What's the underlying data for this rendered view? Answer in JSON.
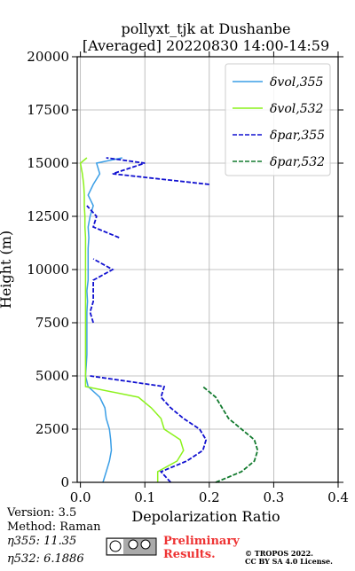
{
  "chart_data": {
    "type": "line",
    "title": [
      "pollyxt_tjk at Dushanbe",
      "[Averaged] 20220830 14:00-14:59"
    ],
    "x_label": "Depolarization Ratio",
    "y_label": "Height (m)",
    "x": [
      0,
      500,
      1000,
      1500,
      2000,
      2500,
      3000,
      3500,
      4000,
      4500,
      5000,
      5500,
      6000,
      6500,
      7000,
      7500,
      8000,
      8500,
      9000,
      9500,
      10000,
      10500,
      11000,
      11500,
      12000,
      12500,
      13000,
      13500,
      14000,
      14500,
      15000,
      15250
    ],
    "series": [
      {
        "name": "δvol,355",
        "color": "#3a9ee6",
        "dash": false,
        "values": [
          0.035,
          0.04,
          0.045,
          0.048,
          0.047,
          0.045,
          0.04,
          0.038,
          0.03,
          0.012,
          0.008,
          0.009,
          0.01,
          0.01,
          0.01,
          0.01,
          0.01,
          0.011,
          0.01,
          0.012,
          0.012,
          0.012,
          0.012,
          0.013,
          0.012,
          0.015,
          0.02,
          0.012,
          0.02,
          0.03,
          0.025,
          0.065
        ]
      },
      {
        "name": "δvol,532",
        "color": "#8cf21c",
        "dash": false,
        "values": [
          0.12,
          0.12,
          0.15,
          0.16,
          0.155,
          0.13,
          0.125,
          0.11,
          0.09,
          0.008,
          0.008,
          0.008,
          0.008,
          0.008,
          0.008,
          0.008,
          0.008,
          0.008,
          0.008,
          0.008,
          0.008,
          0.008,
          0.008,
          0.008,
          0.007,
          0.007,
          0.006,
          0.006,
          0.005,
          0.003,
          0.0,
          0.01
        ]
      },
      {
        "name": "δpar,355",
        "color": "#1010d0",
        "dash": true,
        "values": [
          0.14,
          0.125,
          0.165,
          0.19,
          0.195,
          0.185,
          0.16,
          0.14,
          0.125,
          0.13,
          0.015,
          null,
          null,
          null,
          null,
          0.02,
          0.015,
          0.02,
          0.02,
          0.02,
          0.05,
          0.02,
          null,
          0.06,
          0.02,
          0.025,
          0.01,
          null,
          0.2,
          0.05,
          0.1,
          0.04
        ]
      },
      {
        "name": "δpar,532",
        "color": "#127a2e",
        "dash": true,
        "values": [
          0.21,
          0.25,
          0.27,
          0.275,
          0.27,
          0.25,
          0.23,
          0.22,
          0.21,
          0.19,
          null,
          null,
          null,
          null,
          null,
          null,
          null,
          null,
          null,
          null,
          null,
          null,
          null,
          null,
          null,
          null,
          null,
          null,
          null,
          null,
          null,
          null
        ]
      }
    ],
    "xlim": [
      -0.005,
      0.4
    ],
    "xticks": [
      {
        "value": 0,
        "label": "0.0"
      },
      0.1,
      0.2,
      0.3,
      0.4
    ],
    "ylim": [
      0,
      20000
    ],
    "yticks": [
      0,
      2500,
      5000,
      7500,
      10000,
      12500,
      15000,
      17500,
      20000
    ],
    "grid": true,
    "legend": "upper right",
    "annotations": {
      "version": "Version: 3.5",
      "method": "Method: Raman",
      "eta355": "η355:  11.35",
      "eta532": "η532: 6.1886",
      "preliminary": [
        "Preliminary",
        "Results."
      ],
      "copyright": [
        "© TROPOS 2022.",
        "CC BY SA 4.0 License."
      ]
    }
  }
}
